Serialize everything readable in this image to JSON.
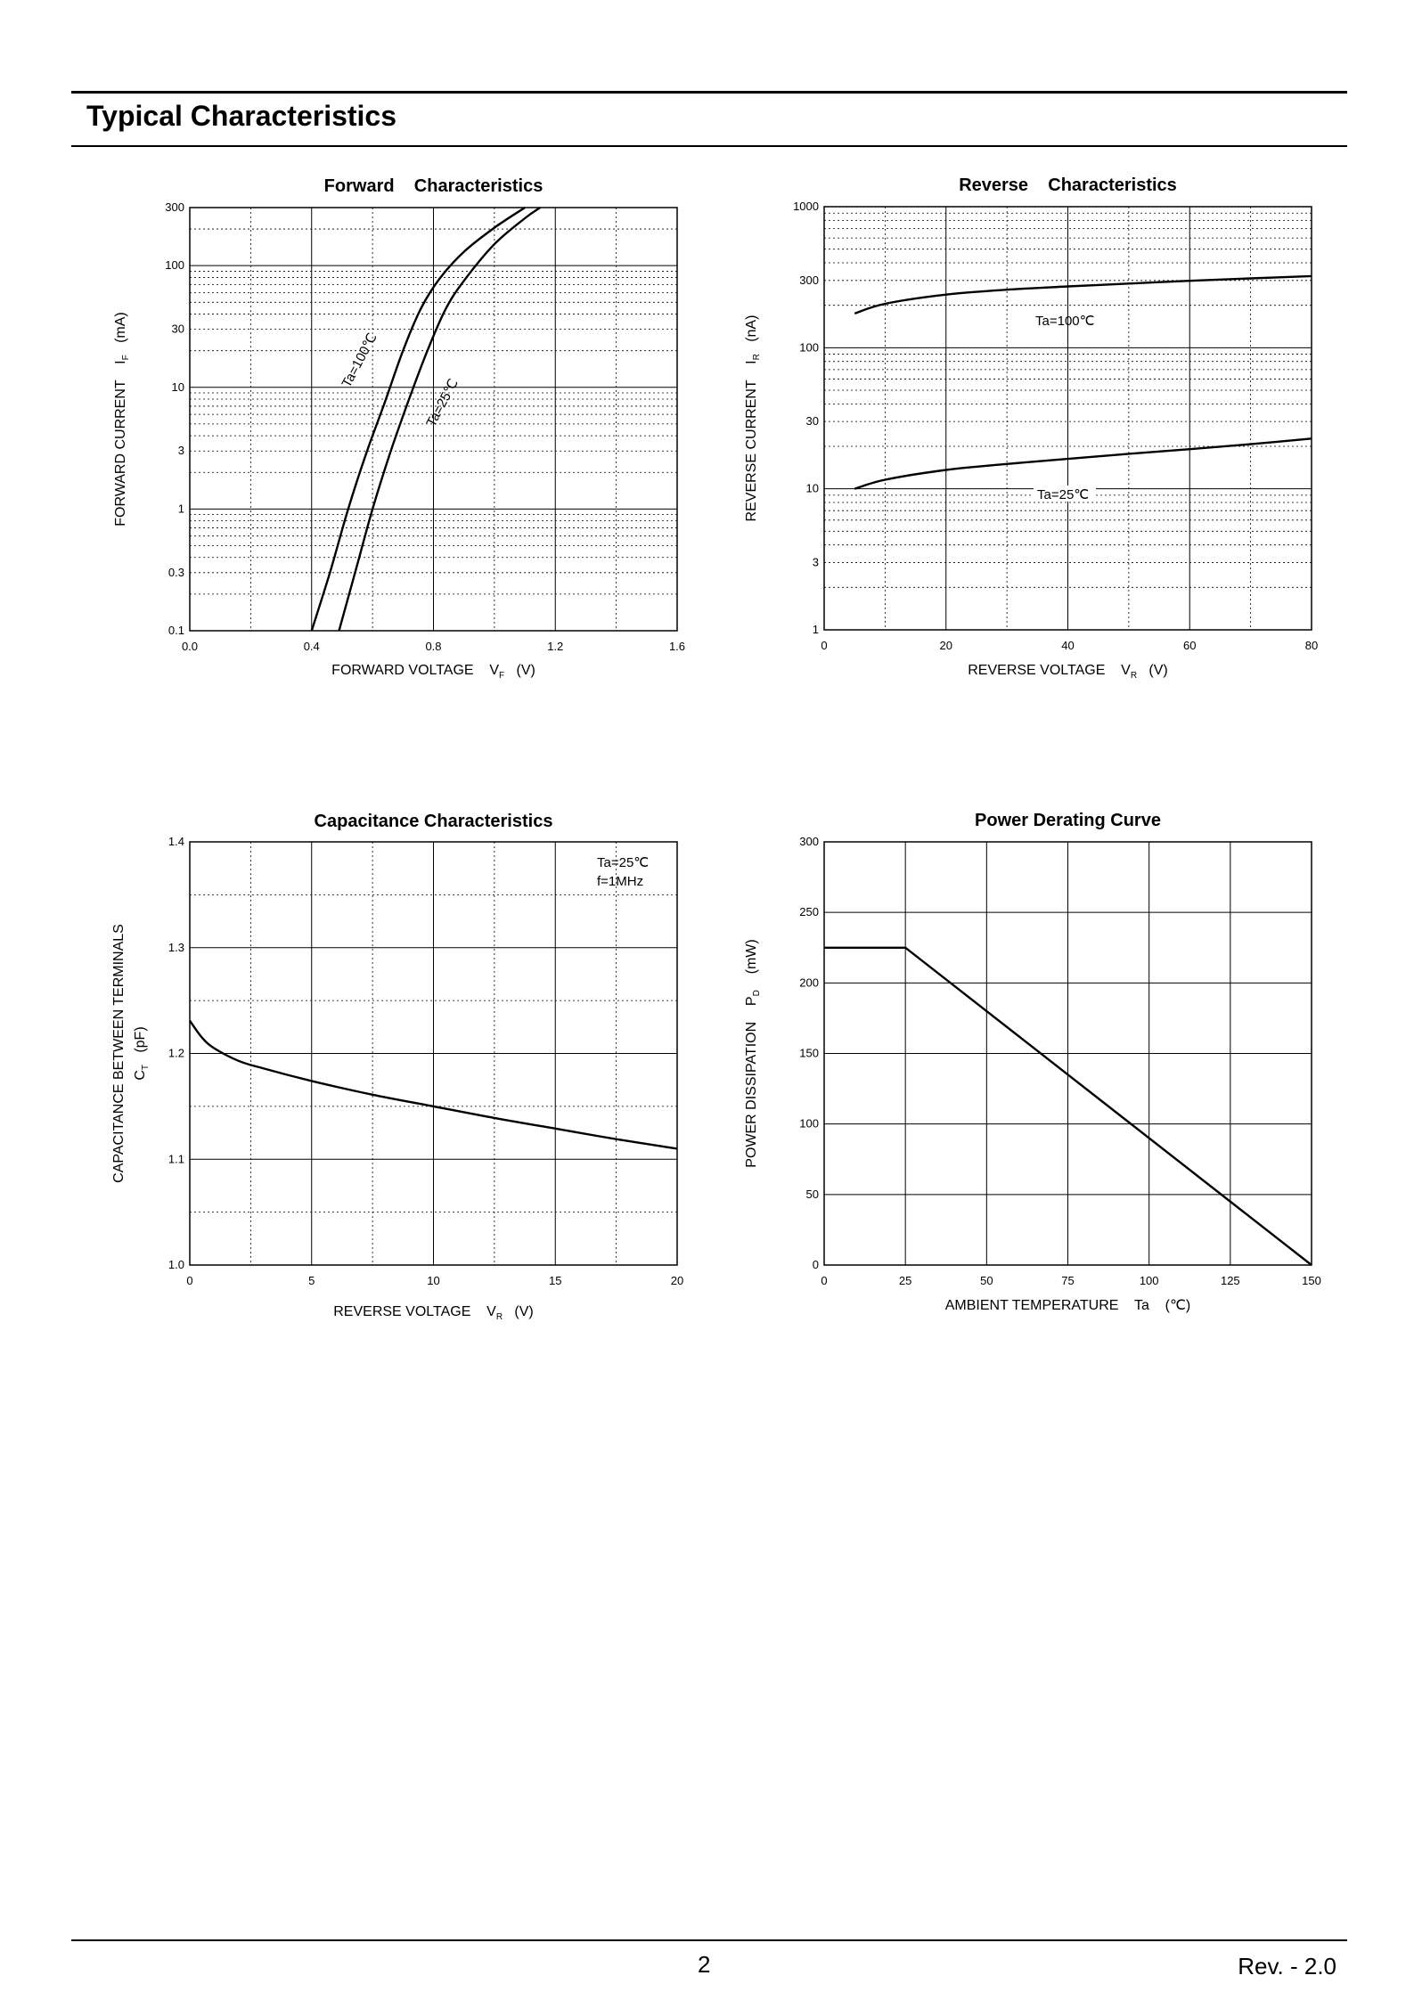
{
  "page": {
    "title": "Typical Characteristics",
    "page_number": "2",
    "revision": "Rev. - 2.0"
  },
  "chart_data": [
    {
      "id": "forward",
      "type": "line",
      "title": "Forward    Characteristics",
      "xlabel": "FORWARD VOLTAGE    VF   (V)",
      "ylabel": "FORWARD CURRENT    IF   (mA)",
      "x_scale": "linear",
      "y_scale": "log",
      "xlim": [
        0,
        1.6
      ],
      "ylim": [
        0.1,
        300
      ],
      "x_ticks": [
        "0.0",
        "0.4",
        "0.8",
        "1.2",
        "1.6"
      ],
      "y_ticks": [
        "0.1",
        "0.3",
        "1",
        "3",
        "10",
        "30",
        "100",
        "300"
      ],
      "grid": "major solid, minor dotted",
      "series": [
        {
          "name": "Ta=100℃",
          "x": [
            0.4,
            0.46,
            0.52,
            0.58,
            0.64,
            0.7,
            0.76,
            0.82,
            0.9,
            1.0,
            1.1
          ],
          "y": [
            0.1,
            0.3,
            1,
            2.9,
            7.5,
            20,
            45,
            78,
            130,
            205,
            300
          ]
        },
        {
          "name": "Ta=25℃",
          "x": [
            0.49,
            0.55,
            0.6,
            0.66,
            0.72,
            0.78,
            0.84,
            0.9,
            1.0,
            1.1,
            1.15
          ],
          "y": [
            0.1,
            0.35,
            1,
            3,
            8,
            20,
            44,
            75,
            150,
            245,
            300
          ]
        }
      ]
    },
    {
      "id": "reverse",
      "type": "line",
      "title": "Reverse    Characteristics",
      "xlabel": "REVERSE VOLTAGE    VR   (V)",
      "ylabel": "REVERSE CURRENT    IR   (nA)",
      "x_scale": "linear",
      "y_scale": "log",
      "xlim": [
        0,
        80
      ],
      "ylim": [
        1,
        1000
      ],
      "x_ticks": [
        "0",
        "20",
        "40",
        "60",
        "80"
      ],
      "y_ticks": [
        "1",
        "3",
        "10",
        "30",
        "100",
        "300",
        "1000"
      ],
      "grid": "major solid, minor dotted",
      "series": [
        {
          "name": "Ta=100℃",
          "x": [
            5,
            10,
            20,
            30,
            40,
            50,
            60,
            70,
            80
          ],
          "y": [
            175,
            205,
            238,
            258,
            272,
            285,
            298,
            310,
            322
          ]
        },
        {
          "name": "Ta=25℃",
          "x": [
            5,
            10,
            20,
            30,
            40,
            50,
            60,
            70,
            80
          ],
          "y": [
            10,
            11.6,
            13.6,
            15,
            16.3,
            17.7,
            19.1,
            20.7,
            22.7
          ]
        }
      ]
    },
    {
      "id": "capacitance",
      "type": "line",
      "title": "Capacitance Characteristics",
      "xlabel": "REVERSE VOLTAGE    VR   (V)",
      "ylabel": "CAPACITANCE BETWEEN TERMINALS",
      "ylabel2": "CT   (pF)",
      "annotation": [
        "Ta=25℃",
        "f=1MHz"
      ],
      "x_scale": "linear",
      "y_scale": "linear",
      "xlim": [
        0,
        20
      ],
      "ylim": [
        1.0,
        1.4
      ],
      "x_ticks": [
        "0",
        "5",
        "10",
        "15",
        "20"
      ],
      "y_ticks": [
        "1.0",
        "1.1",
        "1.2",
        "1.3",
        "1.4"
      ],
      "grid": "major solid, minor dotted",
      "series": [
        {
          "name": "Ta=25℃",
          "x": [
            0,
            0.5,
            1,
            2,
            3,
            5,
            7.5,
            10,
            12.5,
            15,
            17.5,
            20
          ],
          "y": [
            1.231,
            1.215,
            1.205,
            1.193,
            1.186,
            1.174,
            1.161,
            1.15,
            1.139,
            1.129,
            1.119,
            1.11
          ]
        }
      ]
    },
    {
      "id": "derating",
      "type": "line",
      "title": "Power Derating Curve",
      "xlabel": "AMBIENT TEMPERATURE    Ta    (℃)",
      "ylabel": "POWER DISSIPATION    PD    (mW)",
      "x_scale": "linear",
      "y_scale": "linear",
      "xlim": [
        0,
        150
      ],
      "ylim": [
        0,
        300
      ],
      "x_ticks": [
        "0",
        "25",
        "50",
        "75",
        "100",
        "125",
        "150"
      ],
      "y_ticks": [
        "0",
        "50",
        "100",
        "150",
        "200",
        "250",
        "300"
      ],
      "grid": "solid",
      "series": [
        {
          "name": "PD",
          "x": [
            0,
            25,
            150
          ],
          "y": [
            225,
            225,
            0
          ]
        }
      ]
    }
  ]
}
